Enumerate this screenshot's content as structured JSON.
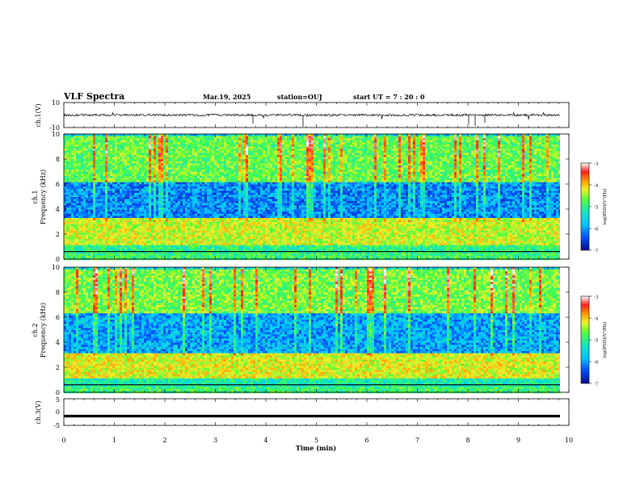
{
  "header": {
    "title": "VLF Spectra",
    "date": "Mar.19, 2025",
    "station": "station=OUJ",
    "start": "start  UT =   7 : 20 : 0"
  },
  "chart_data": {
    "type": "heatmap",
    "x_range": [
      0,
      10
    ],
    "x_ticks": [
      "0",
      "1",
      "2",
      "3",
      "4",
      "5",
      "6",
      "7",
      "8",
      "9",
      "10"
    ],
    "xlabel": "Time (min)",
    "panels": [
      {
        "id": "ch1-wave",
        "type": "line",
        "ylabel": "ch.1(V)",
        "ylim": [
          -10,
          10
        ],
        "y_ticks": [
          "10",
          "-10"
        ],
        "baseline": 0,
        "trace_color": "#000000"
      },
      {
        "id": "ch1-spectrogram",
        "type": "heatmap",
        "ylabel_line1": "ch.1",
        "ylabel_line2": "Frequency (kHz)",
        "ylim": [
          0,
          10
        ],
        "y_ticks": [
          "0",
          "2",
          "4",
          "6",
          "8",
          "10"
        ],
        "colorbar": {
          "label": "log(PSD)(V²/Hz)",
          "range": [
            -7,
            -3
          ],
          "ticks": [
            "-3",
            "-4",
            "-5",
            "-6",
            "-7"
          ]
        },
        "bands": [
          {
            "from": 0,
            "to": 0.6,
            "level": 0.45
          },
          {
            "from": 0.6,
            "to": 1.2,
            "level": 0.42
          },
          {
            "from": 1.2,
            "to": 3.4,
            "level": 0.6
          },
          {
            "from": 3.4,
            "to": 6.2,
            "level": 0.18
          },
          {
            "from": 6.2,
            "to": 10,
            "level": 0.5
          }
        ]
      },
      {
        "id": "ch2-spectrogram",
        "type": "heatmap",
        "ylabel_line1": "ch.2",
        "ylabel_line2": "Frequency (kHz)",
        "ylim": [
          0,
          10
        ],
        "y_ticks": [
          "0",
          "2",
          "4",
          "6",
          "8",
          "10"
        ],
        "colorbar": {
          "label": "log(PSD)(V²/Hz)",
          "range": [
            -7,
            -3
          ],
          "ticks": [
            "-3",
            "-4",
            "-5",
            "-6",
            "-7"
          ]
        },
        "bands": [
          {
            "from": 0,
            "to": 0.6,
            "level": 0.45
          },
          {
            "from": 0.6,
            "to": 1.2,
            "level": 0.38
          },
          {
            "from": 1.2,
            "to": 3.2,
            "level": 0.62
          },
          {
            "from": 3.2,
            "to": 6.4,
            "level": 0.22
          },
          {
            "from": 6.4,
            "to": 10,
            "level": 0.52
          }
        ]
      },
      {
        "id": "ch3-wave",
        "type": "line",
        "ylabel": "ch.3(V)",
        "ylim": [
          -5,
          5
        ],
        "y_ticks": [
          "5",
          "0",
          "-5"
        ],
        "baseline": -1.5,
        "trace_color": "#000000"
      }
    ],
    "colormap": [
      "#0a0a8c",
      "#0050ff",
      "#00c8ff",
      "#19e6b4",
      "#50ff3c",
      "#f0f028",
      "#ff9600",
      "#ff1e1e",
      "#ffffff"
    ]
  }
}
